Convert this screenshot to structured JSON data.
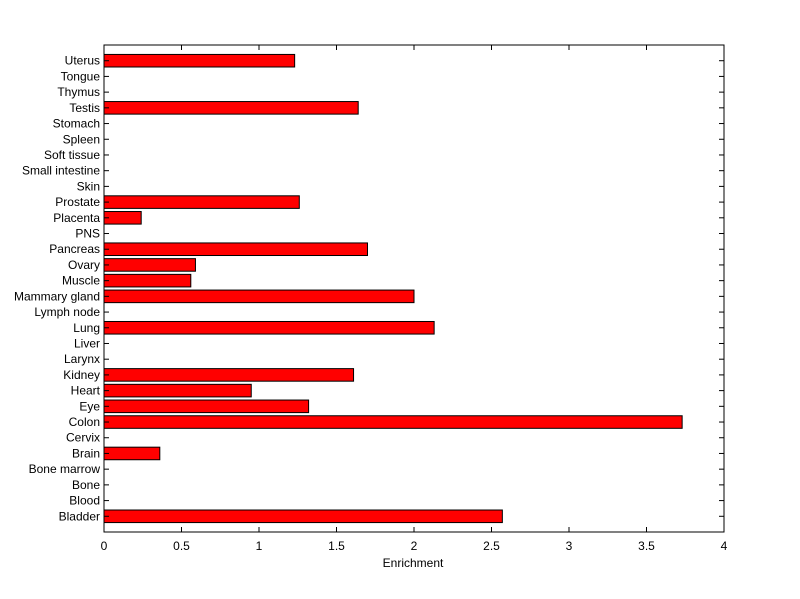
{
  "chart_data": {
    "type": "bar",
    "orientation": "horizontal",
    "categories": [
      "Bladder",
      "Blood",
      "Bone",
      "Bone marrow",
      "Brain",
      "Cervix",
      "Colon",
      "Eye",
      "Heart",
      "Kidney",
      "Larynx",
      "Liver",
      "Lung",
      "Lymph node",
      "Mammary gland",
      "Muscle",
      "Ovary",
      "Pancreas",
      "PNS",
      "Placenta",
      "Prostate",
      "Skin",
      "Small intestine",
      "Soft tissue",
      "Spleen",
      "Stomach",
      "Testis",
      "Thymus",
      "Tongue",
      "Uterus"
    ],
    "values": [
      2.57,
      0,
      0,
      0,
      0.36,
      0,
      3.73,
      1.32,
      0.95,
      1.61,
      0,
      0,
      2.13,
      0,
      2.0,
      0.56,
      0.59,
      1.7,
      0,
      0.24,
      1.26,
      0,
      0,
      0,
      0,
      0,
      1.64,
      0,
      0,
      1.23
    ],
    "title": "",
    "xlabel": "Enrichment",
    "ylabel": "",
    "xlim": [
      0,
      4
    ],
    "xticks": [
      "0",
      "0.5",
      "1",
      "1.5",
      "2",
      "2.5",
      "3",
      "3.5",
      "4"
    ],
    "bar_color": "#ff0000",
    "edge_color": "#000000",
    "grid": false,
    "legend": "none"
  }
}
